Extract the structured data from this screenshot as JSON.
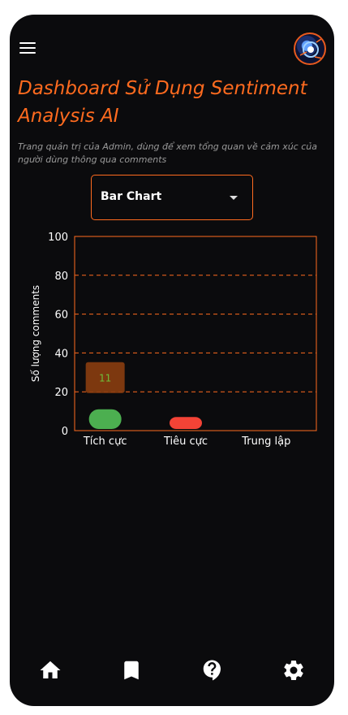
{
  "header": {
    "title": "Dashboard Sử Dụng Sentiment Analysis AI",
    "subtitle": "Trang quản trị của Admin, dùng để xem tổng quan về cảm xúc của người dùng thông qua comments"
  },
  "chart_selector": {
    "selected": "Bar Chart"
  },
  "chart_data": {
    "type": "bar",
    "categories": [
      "Tích cực",
      "Tiêu cực",
      "Trung lập"
    ],
    "values": [
      11,
      7,
      0
    ],
    "ylabel": "Số lượng comments",
    "ylim": [
      0,
      100
    ],
    "yticks": [
      0,
      20,
      40,
      60,
      80,
      100
    ],
    "grid": true,
    "tooltip": {
      "category": "Tích cực",
      "value": "11"
    }
  },
  "colors": {
    "accent": "#ff6b1f",
    "positive": "#4caf50",
    "negative": "#f44336",
    "neutral": "#9e9e9e",
    "background": "#0b0b0d"
  },
  "nav": {
    "items": [
      {
        "icon": "home-icon"
      },
      {
        "icon": "bookmark-icon"
      },
      {
        "icon": "help-icon"
      },
      {
        "icon": "settings-icon"
      }
    ]
  }
}
